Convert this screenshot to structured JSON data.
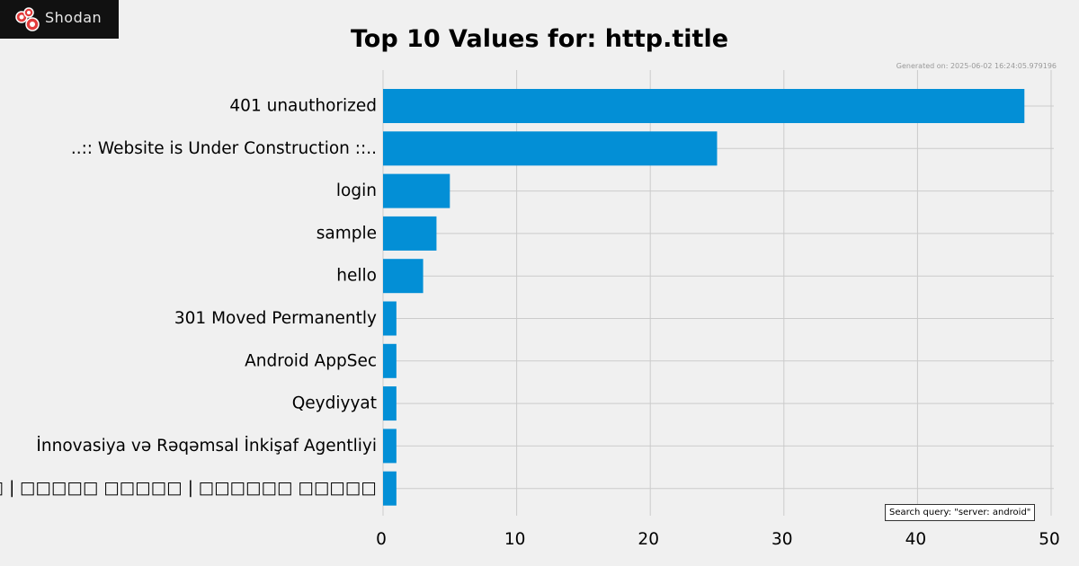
{
  "logo": {
    "text": "Shodan",
    "icon": "shodan-logo-icon"
  },
  "title": "Top 10 Values for: http.title",
  "generated": "Generated on: 2025-06-02 16:24:05.979196",
  "search_query": "Search query: \"server: android\"",
  "colors": {
    "bar": "#038fd6",
    "grid": "#cbcbcb",
    "background": "#f0f0f0"
  },
  "chart_data": {
    "type": "bar",
    "orientation": "horizontal",
    "title": "Top 10 Values for: http.title",
    "categories": [
      "401 unauthorized",
      "..:: Website is Under Construction ::..",
      "login",
      "sample",
      "hello",
      "301 Moved Permanently",
      "Android AppSec",
      "Qeydiyyat",
      "İnnovasiya və Rəqəmsal İnkişaf Agentliyi",
      "□□□□□□□ | □□□□□ □□□□□ | □□□□□□ □□□□□"
    ],
    "values": [
      48,
      25,
      5,
      4,
      3,
      1,
      1,
      1,
      1,
      1
    ],
    "xlim": [
      0,
      50
    ],
    "xticks": [
      "0",
      "10",
      "20",
      "30",
      "40",
      "50"
    ],
    "grid": true
  }
}
